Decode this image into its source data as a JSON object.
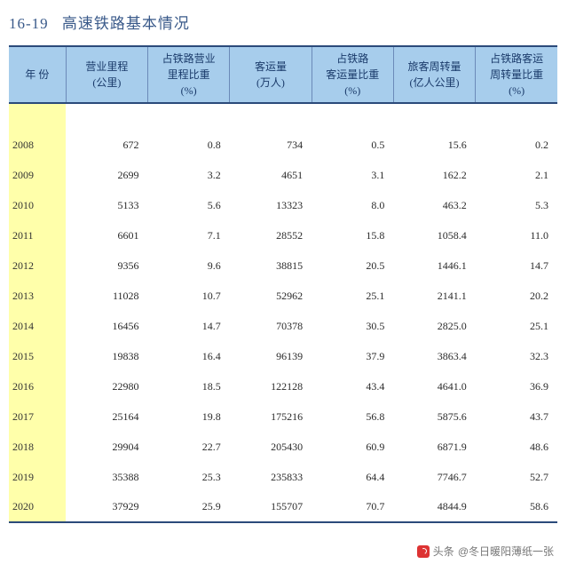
{
  "title_code": "16-19",
  "title_text": "高速铁路基本情况",
  "columns": [
    {
      "label": "年 份",
      "unit": ""
    },
    {
      "label": "营业里程",
      "unit": "(公里)"
    },
    {
      "label": "占铁路营业",
      "label2": "里程比重",
      "unit": "(%)"
    },
    {
      "label": "客运量",
      "unit": "(万人)"
    },
    {
      "label": "占铁路",
      "label2": "客运量比重",
      "unit": "(%)"
    },
    {
      "label": "旅客周转量",
      "unit": "(亿人公里)"
    },
    {
      "label": "占铁路客运",
      "label2": "周转量比重",
      "unit": "(%)"
    }
  ],
  "rows": [
    {
      "year": "2008",
      "v": [
        "672",
        "0.8",
        "734",
        "0.5",
        "15.6",
        "0.2"
      ]
    },
    {
      "year": "2009",
      "v": [
        "2699",
        "3.2",
        "4651",
        "3.1",
        "162.2",
        "2.1"
      ]
    },
    {
      "year": "2010",
      "v": [
        "5133",
        "5.6",
        "13323",
        "8.0",
        "463.2",
        "5.3"
      ]
    },
    {
      "year": "2011",
      "v": [
        "6601",
        "7.1",
        "28552",
        "15.8",
        "1058.4",
        "11.0"
      ]
    },
    {
      "year": "2012",
      "v": [
        "9356",
        "9.6",
        "38815",
        "20.5",
        "1446.1",
        "14.7"
      ]
    },
    {
      "year": "2013",
      "v": [
        "11028",
        "10.7",
        "52962",
        "25.1",
        "2141.1",
        "20.2"
      ]
    },
    {
      "year": "2014",
      "v": [
        "16456",
        "14.7",
        "70378",
        "30.5",
        "2825.0",
        "25.1"
      ]
    },
    {
      "year": "2015",
      "v": [
        "19838",
        "16.4",
        "96139",
        "37.9",
        "3863.4",
        "32.3"
      ]
    },
    {
      "year": "2016",
      "v": [
        "22980",
        "18.5",
        "122128",
        "43.4",
        "4641.0",
        "36.9"
      ]
    },
    {
      "year": "2017",
      "v": [
        "25164",
        "19.8",
        "175216",
        "56.8",
        "5875.6",
        "43.7"
      ]
    },
    {
      "year": "2018",
      "v": [
        "29904",
        "22.7",
        "205430",
        "60.9",
        "6871.9",
        "48.6"
      ]
    },
    {
      "year": "2019",
      "v": [
        "35388",
        "25.3",
        "235833",
        "64.4",
        "7746.7",
        "52.7"
      ]
    },
    {
      "year": "2020",
      "v": [
        "37929",
        "25.9",
        "155707",
        "70.7",
        "4844.9",
        "58.6"
      ]
    }
  ],
  "watermark_prefix": "头条",
  "watermark_user": "@冬日暖阳薄纸一张",
  "colors": {
    "header_bg": "#a7cdec",
    "header_text": "#1a3a6a",
    "title_text": "#3a5a8a",
    "border": "#2b4a7a",
    "year_bg": "#ffffaa"
  }
}
